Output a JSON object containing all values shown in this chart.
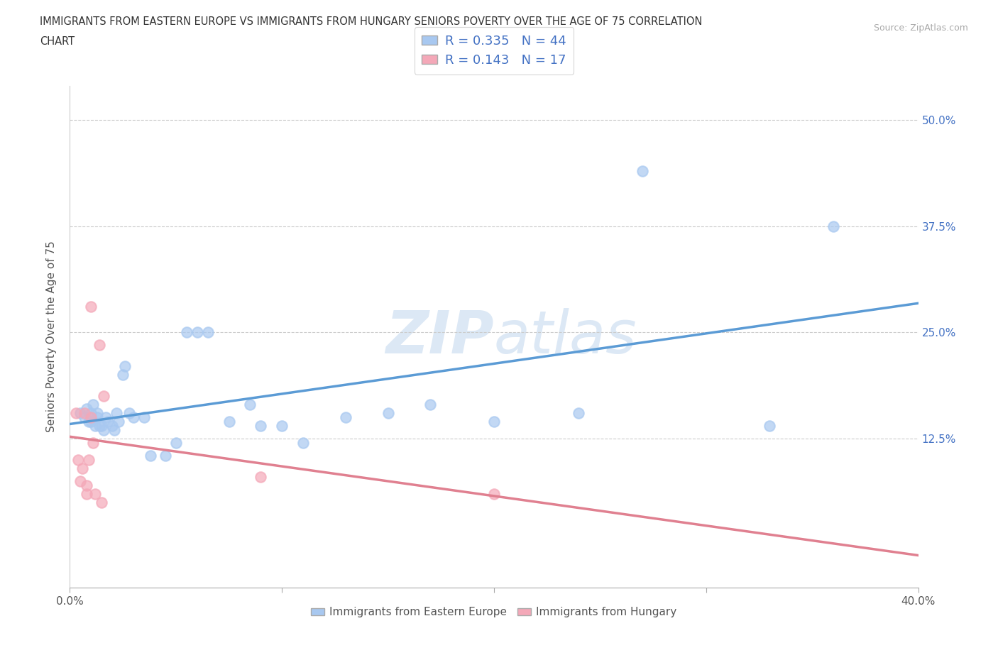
{
  "title_line1": "IMMIGRANTS FROM EASTERN EUROPE VS IMMIGRANTS FROM HUNGARY SENIORS POVERTY OVER THE AGE OF 75 CORRELATION",
  "title_line2": "CHART",
  "source": "Source: ZipAtlas.com",
  "ylabel": "Seniors Poverty Over the Age of 75",
  "xlim": [
    0.0,
    0.4
  ],
  "ylim": [
    -0.05,
    0.54
  ],
  "ytick_labels": [
    "12.5%",
    "25.0%",
    "37.5%",
    "50.0%"
  ],
  "ytick_values": [
    0.125,
    0.25,
    0.375,
    0.5
  ],
  "xtick_values": [
    0.0,
    0.1,
    0.2,
    0.3,
    0.4
  ],
  "R_eastern": 0.335,
  "N_eastern": 44,
  "R_hungary": 0.143,
  "N_hungary": 17,
  "color_eastern": "#a8c8f0",
  "color_hungary": "#f4a8b8",
  "color_text_blue": "#4472c4",
  "watermark_zip": "ZIP",
  "watermark_atlas": "atlas",
  "watermark_color": "#dce8f5",
  "background_color": "#ffffff",
  "eastern_x": [
    0.005,
    0.007,
    0.008,
    0.009,
    0.01,
    0.01,
    0.01,
    0.011,
    0.012,
    0.013,
    0.013,
    0.014,
    0.015,
    0.016,
    0.017,
    0.018,
    0.02,
    0.021,
    0.022,
    0.023,
    0.025,
    0.026,
    0.028,
    0.03,
    0.035,
    0.038,
    0.045,
    0.05,
    0.055,
    0.06,
    0.065,
    0.075,
    0.085,
    0.09,
    0.1,
    0.11,
    0.13,
    0.15,
    0.17,
    0.2,
    0.24,
    0.27,
    0.33,
    0.36
  ],
  "eastern_y": [
    0.155,
    0.15,
    0.16,
    0.145,
    0.145,
    0.15,
    0.155,
    0.165,
    0.14,
    0.15,
    0.155,
    0.14,
    0.14,
    0.135,
    0.15,
    0.145,
    0.14,
    0.135,
    0.155,
    0.145,
    0.2,
    0.21,
    0.155,
    0.15,
    0.15,
    0.105,
    0.105,
    0.12,
    0.25,
    0.25,
    0.25,
    0.145,
    0.165,
    0.14,
    0.14,
    0.12,
    0.15,
    0.155,
    0.165,
    0.145,
    0.155,
    0.44,
    0.14,
    0.375
  ],
  "hungary_x": [
    0.003,
    0.004,
    0.005,
    0.006,
    0.007,
    0.008,
    0.008,
    0.009,
    0.01,
    0.01,
    0.011,
    0.012,
    0.014,
    0.015,
    0.016,
    0.09,
    0.2
  ],
  "hungary_y": [
    0.155,
    0.1,
    0.075,
    0.09,
    0.155,
    0.07,
    0.06,
    0.1,
    0.15,
    0.28,
    0.12,
    0.06,
    0.235,
    0.05,
    0.175,
    0.08,
    0.06
  ]
}
